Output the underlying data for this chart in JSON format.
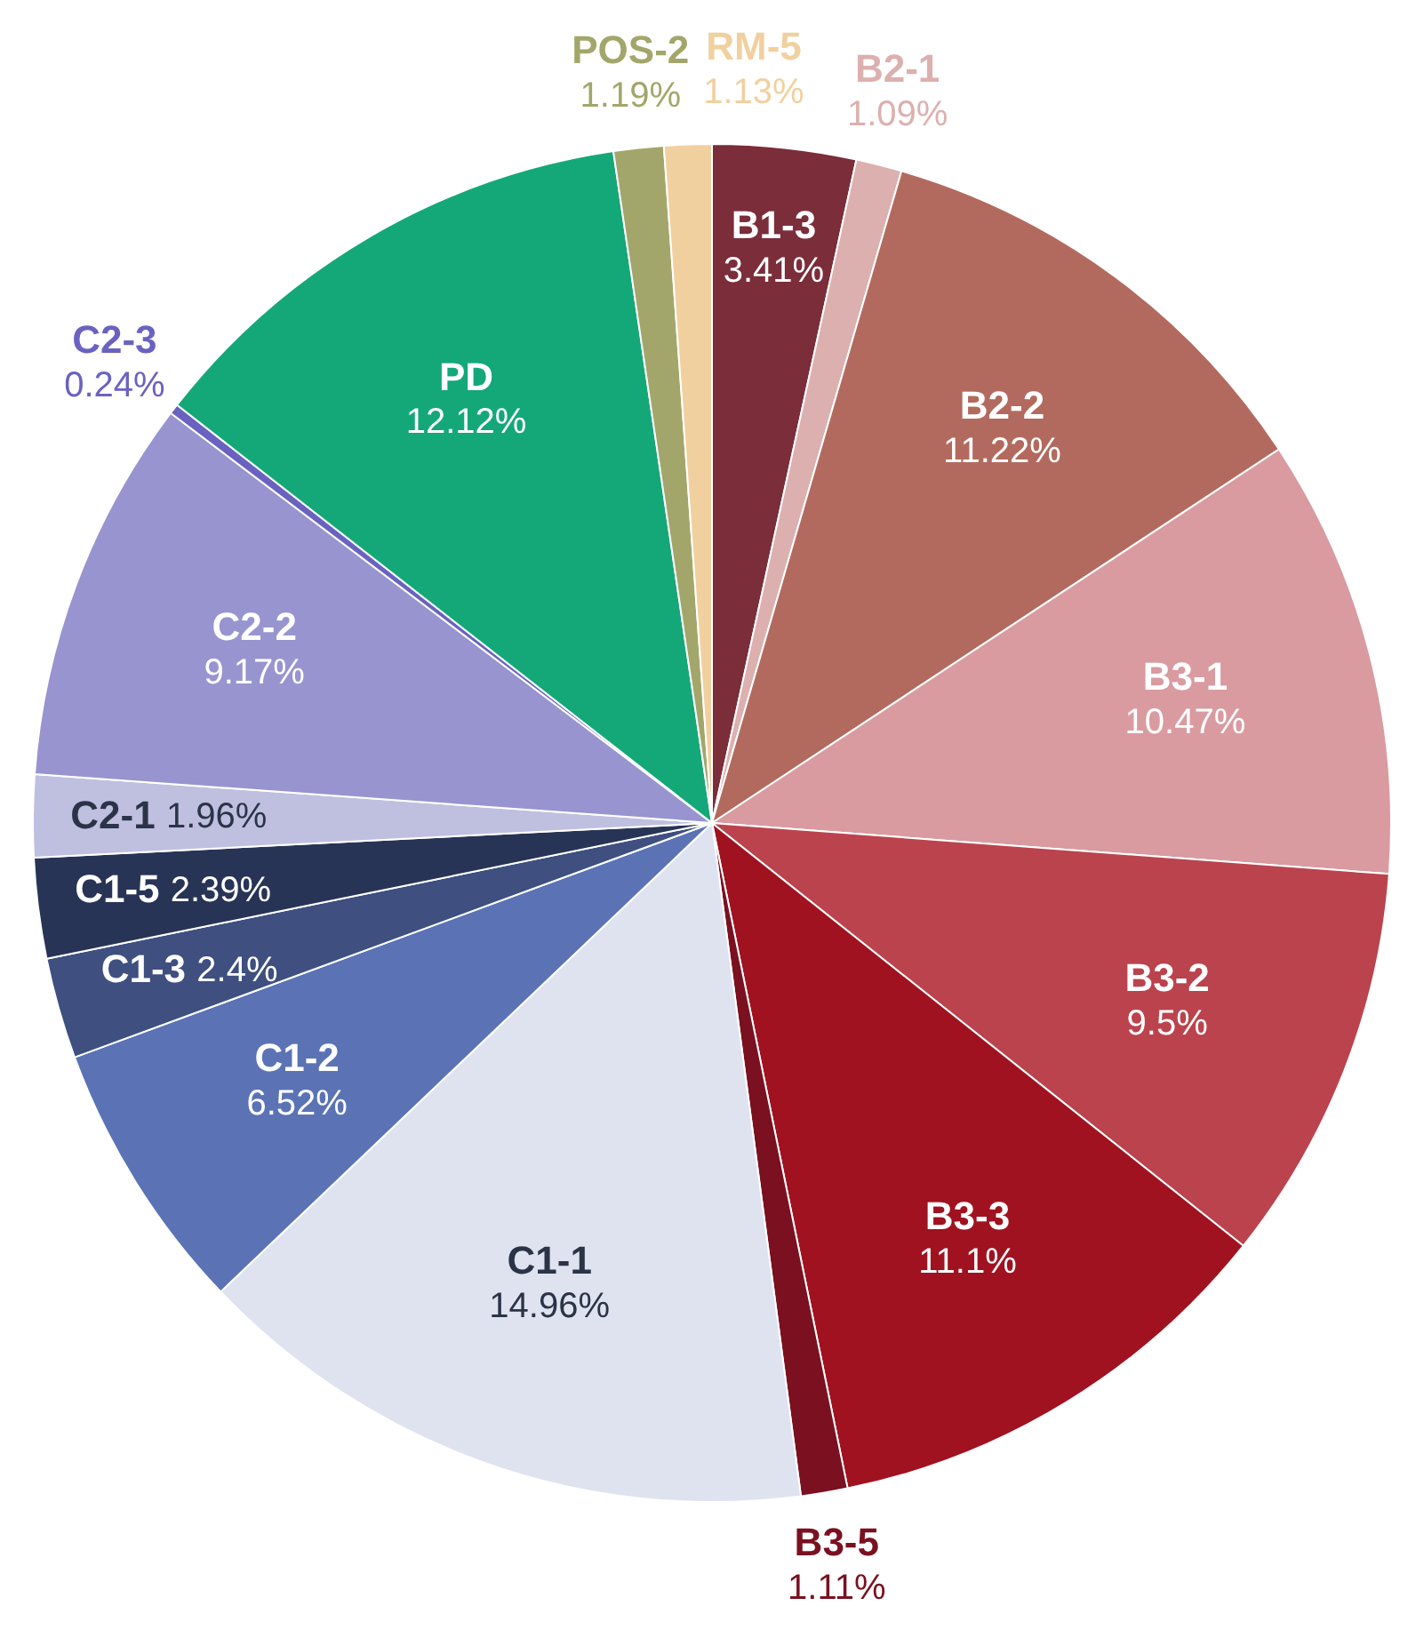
{
  "chart_data": {
    "type": "pie",
    "categories": [
      "B1-3",
      "B2-1",
      "B2-2",
      "B3-1",
      "B3-2",
      "B3-3",
      "B3-5",
      "C1-1",
      "C1-2",
      "C1-3",
      "C1-5",
      "C2-1",
      "C2-2",
      "C2-3",
      "PD",
      "POS-2",
      "RM-5"
    ],
    "values": [
      3.41,
      1.09,
      11.22,
      10.47,
      9.5,
      11.1,
      1.11,
      14.96,
      6.52,
      2.4,
      2.39,
      1.96,
      9.17,
      0.24,
      12.12,
      1.19,
      1.13
    ],
    "value_labels": [
      "3.41%",
      "1.09%",
      "11.22%",
      "10.47%",
      "9.5%",
      "11.1%",
      "1.11%",
      "14.96%",
      "6.52%",
      "2.4%",
      "2.39%",
      "1.96%",
      "9.17%",
      "0.24%",
      "12.12%",
      "1.19%",
      "1.13%"
    ],
    "colors": [
      "#7b2d3a",
      "#dcb0ae",
      "#b36a5e",
      "#d99ba0",
      "#bb434d",
      "#a01220",
      "#7a1020",
      "#dfe3f0",
      "#5b73b5",
      "#3e4f80",
      "#283456",
      "#bfc0e0",
      "#9794d0",
      "#6a62c0",
      "#14a878",
      "#a3a66a",
      "#f1d09f"
    ],
    "legend": false
  }
}
